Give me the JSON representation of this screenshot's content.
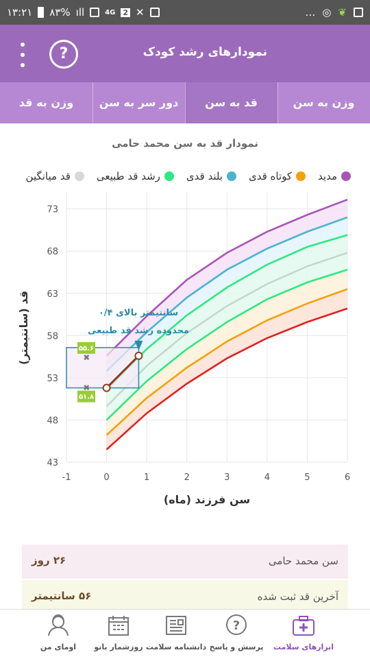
{
  "status_bar": {
    "time": "۱۳:۲۱",
    "battery": "۸۳%",
    "network": "4G",
    "sim": "2"
  },
  "app_bar": {
    "title": "نمودارهای رشد کودک",
    "help_icon": "question-circle-icon",
    "menu_icon": "more-vert-icon"
  },
  "tabs": [
    {
      "label": "وزن به سن"
    },
    {
      "label": "قد به سن"
    },
    {
      "label": "دور سر به سن"
    },
    {
      "label": "وزن به قد"
    }
  ],
  "active_tab": 1,
  "chart": {
    "title": "نمودار قد به سن محمد حامی",
    "legend": [
      {
        "label": "مدید",
        "color": "#a855b5"
      },
      {
        "label": "کوتاه قدی",
        "color": "#f2a20d"
      },
      {
        "label": "بلند قدی",
        "color": "#4ab3d1"
      },
      {
        "label": "رشد قد طبیعی",
        "color": "#2ee882"
      },
      {
        "label": "قد میانگین",
        "color": "#d8d8d8"
      }
    ],
    "annotation_line1": "۰/۴ سانتیمتر بالای",
    "annotation_line2": "محدوده رشد قد طبیعی",
    "marker_low": "۵۱.۸",
    "marker_high": "۵۵.۶"
  },
  "chart_data": {
    "type": "line",
    "title": "",
    "xlabel": "سن فرزند (ماه)",
    "ylabel": "قد (سانتیمتر)",
    "xlim": [
      -1,
      6
    ],
    "ylim": [
      43,
      75
    ],
    "x_ticks": [
      -1,
      0,
      1,
      2,
      3,
      4,
      5,
      6
    ],
    "y_ticks": [
      43,
      48,
      53,
      58,
      63,
      68,
      73
    ],
    "x": [
      0,
      1,
      2,
      3,
      4,
      5,
      6
    ],
    "series": [
      {
        "color": "#e02020",
        "values": [
          44.5,
          48.8,
          52.3,
          55.3,
          57.7,
          59.6,
          61.2
        ]
      },
      {
        "color": "#f2a20d",
        "values": [
          46.2,
          50.6,
          54.2,
          57.3,
          59.8,
          61.8,
          63.5
        ]
      },
      {
        "color": "#2ee882",
        "values": [
          48.0,
          52.6,
          56.4,
          59.6,
          62.3,
          64.3,
          65.8
        ]
      },
      {
        "color": "#c6d6cc",
        "values": [
          49.6,
          54.4,
          58.3,
          61.5,
          64.1,
          66.2,
          67.8
        ]
      },
      {
        "color": "#2ee882",
        "values": [
          51.6,
          56.4,
          60.4,
          63.7,
          66.4,
          68.5,
          69.9
        ]
      },
      {
        "color": "#4ab3d1",
        "values": [
          53.8,
          58.4,
          62.5,
          65.8,
          68.3,
          70.3,
          72.0
        ]
      },
      {
        "color": "#a855b5",
        "values": [
          55.6,
          60.3,
          64.6,
          67.8,
          70.3,
          72.3,
          74.1
        ]
      }
    ],
    "child_points": [
      {
        "x": 0,
        "y": 51.8
      },
      {
        "x": 0.8,
        "y": 55.6
      }
    ]
  },
  "info_cards": [
    {
      "label": "سن محمد حامی",
      "value": "۲۶ روز",
      "bg": "#f8ecf3"
    },
    {
      "label": "آخرین قد ثبت شده",
      "value": "۵۶ سانتیمتر",
      "bg": "#f7f8e6"
    }
  ],
  "bottom_nav": [
    {
      "label": "ابزارهای سلامت",
      "icon": "health-kit-icon"
    },
    {
      "label": "پرسش و پاسخ",
      "icon": "question-bubble-icon"
    },
    {
      "label": "دانشنامه سلامت",
      "icon": "encyclopedia-icon"
    },
    {
      "label": "روزشمار بانو",
      "icon": "calendar-icon"
    },
    {
      "label": "اومای من",
      "icon": "profile-icon"
    }
  ],
  "accent_color": "#9b6aba"
}
